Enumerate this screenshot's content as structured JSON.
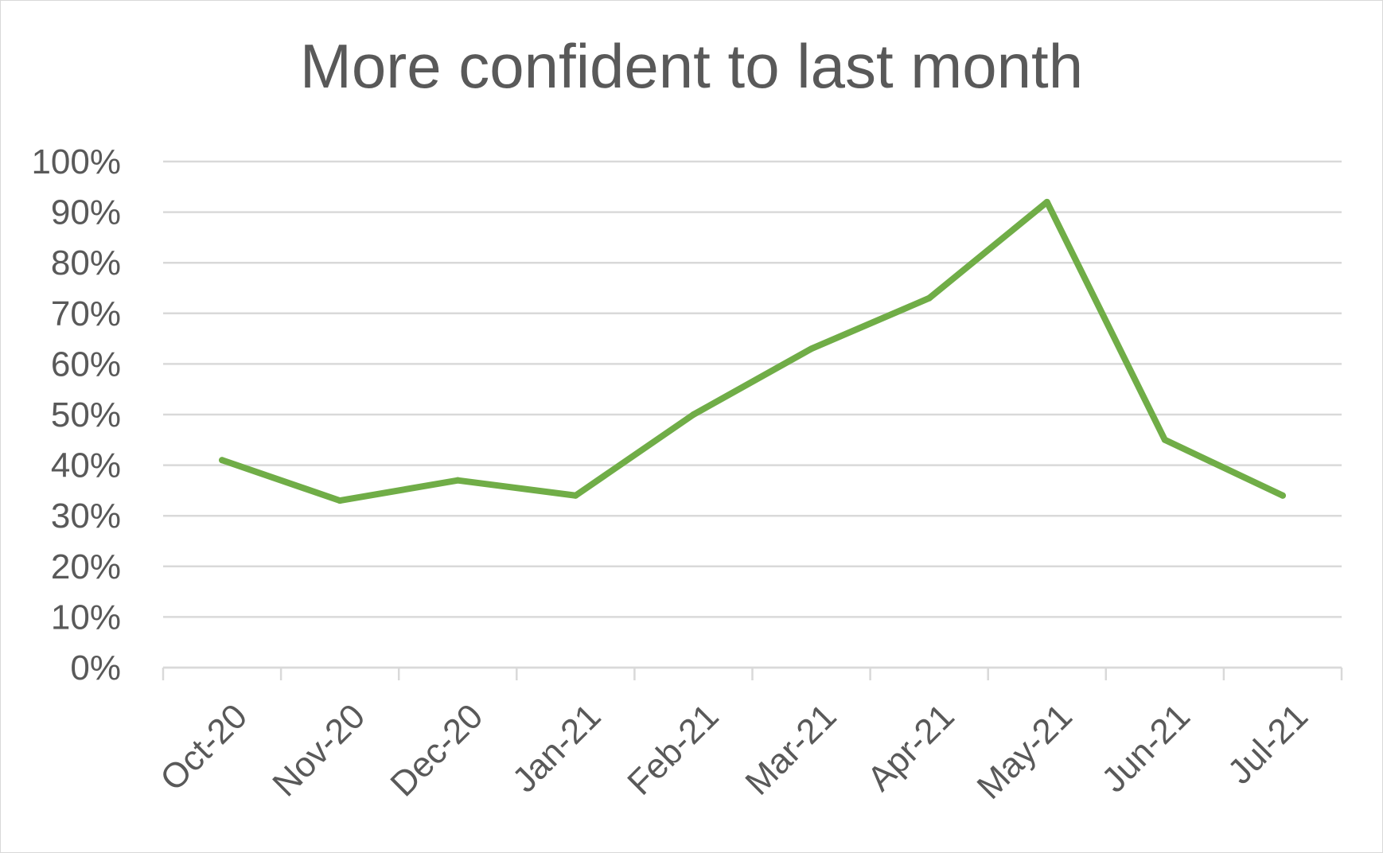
{
  "chart_data": {
    "type": "line",
    "title": "More confident to last month",
    "xlabel": "",
    "ylabel": "",
    "categories": [
      "Oct-20",
      "Nov-20",
      "Dec-20",
      "Jan-21",
      "Feb-21",
      "Mar-21",
      "Apr-21",
      "May-21",
      "Jun-21",
      "Jul-21"
    ],
    "series": [
      {
        "values": [
          0.41,
          0.33,
          0.37,
          0.34,
          0.5,
          0.63,
          0.73,
          0.92,
          0.45,
          0.34
        ],
        "color": "#70ad47"
      }
    ],
    "ylim": [
      0,
      1
    ],
    "y_ticks": [
      0,
      0.1,
      0.2,
      0.3,
      0.4,
      0.5,
      0.6,
      0.7,
      0.8,
      0.9,
      1.0
    ],
    "y_tick_labels": [
      "0%",
      "10%",
      "20%",
      "30%",
      "40%",
      "50%",
      "60%",
      "70%",
      "80%",
      "90%",
      "100%"
    ],
    "grid": true,
    "gridline_color": "#d9d9d9",
    "text_color": "#595959",
    "legend": "none"
  }
}
